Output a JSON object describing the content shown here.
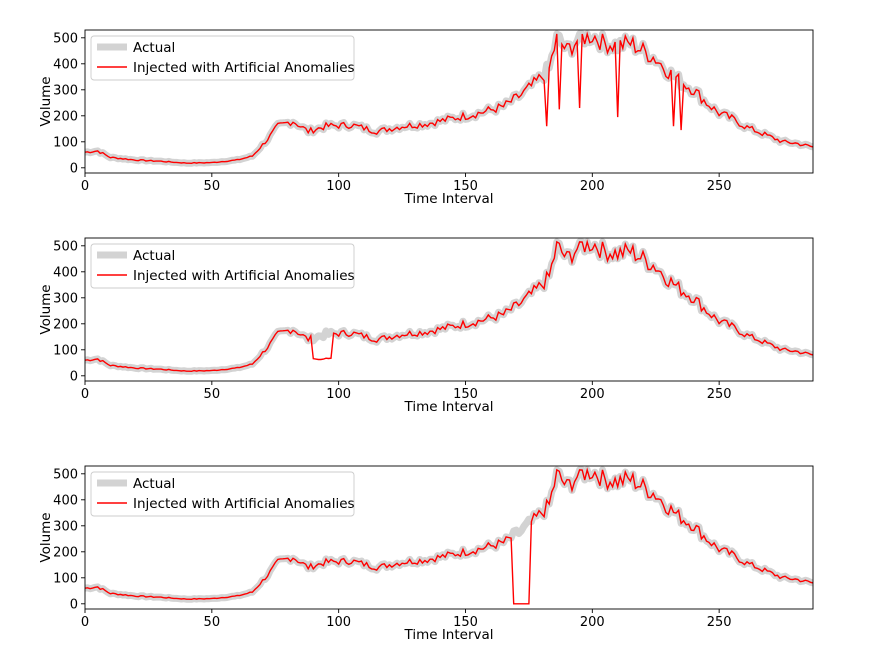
{
  "chart_data": [
    {
      "type": "line",
      "title": "",
      "xlabel": "Time Interval",
      "ylabel": "Volume",
      "xlim": [
        0,
        287
      ],
      "ylim": [
        -20,
        530
      ],
      "xticks": [
        0,
        50,
        100,
        150,
        200,
        250
      ],
      "yticks": [
        0,
        100,
        200,
        300,
        400,
        500
      ],
      "legend": {
        "position": "top-left",
        "entries": [
          "Actual",
          "Injected with Artificial Anomalies"
        ]
      },
      "series": [
        {
          "name": "Actual",
          "color": "#d3d3d3"
        },
        {
          "name": "Injected with Artificial Anomalies",
          "color": "#ff0000"
        }
      ],
      "anomalies": [
        {
          "type": "dip",
          "x": 182,
          "value": 160
        },
        {
          "type": "dip",
          "x": 187,
          "value": 225
        },
        {
          "type": "dip",
          "x": 195,
          "value": 230
        },
        {
          "type": "dip",
          "x": 210,
          "value": 195
        },
        {
          "type": "dip",
          "x": 232,
          "value": 160
        },
        {
          "type": "dip",
          "x": 235,
          "value": 145
        }
      ]
    },
    {
      "type": "line",
      "title": "",
      "xlabel": "Time Interval",
      "ylabel": "Volume",
      "xlim": [
        0,
        287
      ],
      "ylim": [
        -20,
        530
      ],
      "xticks": [
        0,
        50,
        100,
        150,
        200,
        250
      ],
      "yticks": [
        0,
        100,
        200,
        300,
        400,
        500
      ],
      "legend": {
        "position": "top-left",
        "entries": [
          "Actual",
          "Injected with Artificial Anomalies"
        ]
      },
      "series": [
        {
          "name": "Actual",
          "color": "#d3d3d3"
        },
        {
          "name": "Injected with Artificial Anomalies",
          "color": "#ff0000"
        }
      ],
      "anomalies": [
        {
          "type": "level_shift",
          "x_start": 90,
          "x_end": 97,
          "value": 65
        }
      ]
    },
    {
      "type": "line",
      "title": "",
      "xlabel": "Time Interval",
      "ylabel": "Volume",
      "xlim": [
        0,
        287
      ],
      "ylim": [
        -20,
        530
      ],
      "xticks": [
        0,
        50,
        100,
        150,
        200,
        250
      ],
      "yticks": [
        0,
        100,
        200,
        300,
        400,
        500
      ],
      "legend": {
        "position": "top-left",
        "entries": [
          "Actual",
          "Injected with Artificial Anomalies"
        ]
      },
      "series": [
        {
          "name": "Actual",
          "color": "#d3d3d3"
        },
        {
          "name": "Injected with Artificial Anomalies",
          "color": "#ff0000"
        }
      ],
      "anomalies": [
        {
          "type": "level_shift",
          "x_start": 169,
          "x_end": 175,
          "value": 0
        }
      ]
    }
  ],
  "actual_series": {
    "x_start": 0,
    "x_end": 287,
    "keypoints": [
      [
        0,
        60
      ],
      [
        5,
        65
      ],
      [
        10,
        40
      ],
      [
        20,
        30
      ],
      [
        30,
        25
      ],
      [
        40,
        18
      ],
      [
        50,
        20
      ],
      [
        60,
        30
      ],
      [
        66,
        45
      ],
      [
        72,
        110
      ],
      [
        76,
        160
      ],
      [
        82,
        180
      ],
      [
        88,
        140
      ],
      [
        95,
        160
      ],
      [
        105,
        165
      ],
      [
        115,
        140
      ],
      [
        125,
        160
      ],
      [
        135,
        170
      ],
      [
        145,
        190
      ],
      [
        155,
        210
      ],
      [
        165,
        235
      ],
      [
        172,
        280
      ],
      [
        178,
        330
      ],
      [
        183,
        380
      ],
      [
        186,
        500
      ],
      [
        190,
        450
      ],
      [
        195,
        500
      ],
      [
        200,
        510
      ],
      [
        205,
        480
      ],
      [
        210,
        470
      ],
      [
        215,
        480
      ],
      [
        220,
        450
      ],
      [
        225,
        420
      ],
      [
        230,
        370
      ],
      [
        235,
        330
      ],
      [
        240,
        300
      ],
      [
        245,
        250
      ],
      [
        250,
        210
      ],
      [
        255,
        190
      ],
      [
        260,
        160
      ],
      [
        265,
        140
      ],
      [
        270,
        120
      ],
      [
        275,
        100
      ],
      [
        280,
        95
      ],
      [
        287,
        80
      ]
    ],
    "noise_amplitude": 0.08
  }
}
